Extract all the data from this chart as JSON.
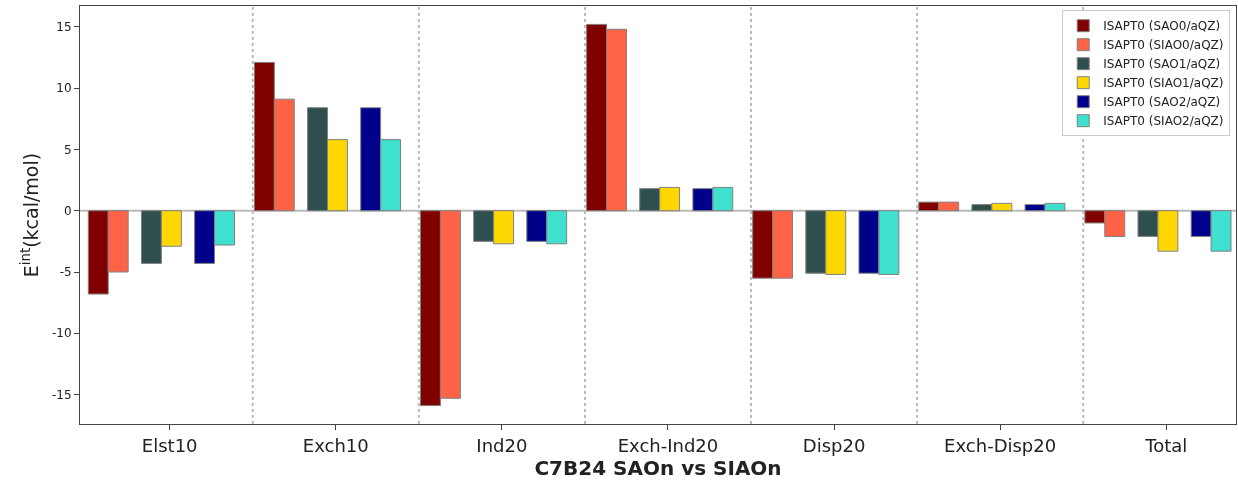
{
  "chart_data": {
    "type": "bar",
    "xlabel": "C7B24 SAOn vs SIAOn",
    "ylabel": "E$^{int}$(kcal/mol)",
    "categories": [
      "Elst10",
      "Exch10",
      "Ind20",
      "Exch-Ind20",
      "Disp20",
      "Exch-Disp20",
      "Total"
    ],
    "series": [
      {
        "name": "ISAPT0 (SAO0/aQZ)",
        "color": "#800000",
        "values": [
          -6.8,
          12.1,
          -15.9,
          15.2,
          -5.5,
          0.7,
          -1.0
        ]
      },
      {
        "name": "ISAPT0 (SIAO0/aQZ)",
        "color": "#ff6347",
        "values": [
          -5.0,
          9.1,
          -15.3,
          14.8,
          -5.5,
          0.7,
          -2.1
        ]
      },
      {
        "name": "ISAPT0 (SAO1/aQZ)",
        "color": "#2f4f4f",
        "values": [
          -4.3,
          8.4,
          -2.5,
          1.8,
          -5.1,
          0.5,
          -2.1
        ]
      },
      {
        "name": "ISAPT0 (SIAO1/aQZ)",
        "color": "#ffd700",
        "values": [
          -2.9,
          5.8,
          -2.7,
          1.9,
          -5.2,
          0.6,
          -3.3
        ]
      },
      {
        "name": "ISAPT0 (SAO2/aQZ)",
        "color": "#00008b",
        "values": [
          -4.3,
          8.4,
          -2.5,
          1.8,
          -5.1,
          0.5,
          -2.1
        ]
      },
      {
        "name": "ISAPT0 (SIAO2/aQZ)",
        "color": "#40e0d0",
        "values": [
          -2.8,
          5.8,
          -2.7,
          1.9,
          -5.2,
          0.6,
          -3.3
        ]
      }
    ],
    "ylim": [
      -17.4,
      16.7
    ],
    "yticks": [
      -15,
      -10,
      -5,
      0,
      5,
      10,
      15
    ],
    "ref_lines": [
      {
        "axis": "y",
        "value": 0,
        "color": "#bbbbbb",
        "line_style": "solid"
      }
    ],
    "legend": "top right",
    "grid": false
  }
}
